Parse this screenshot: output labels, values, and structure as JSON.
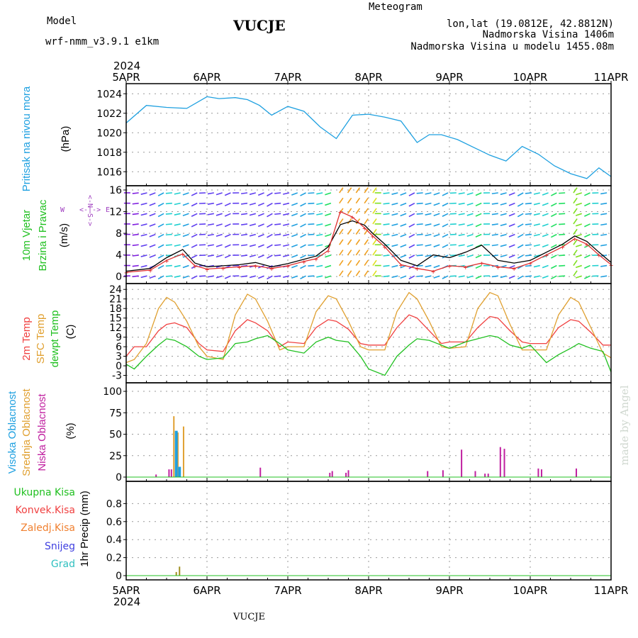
{
  "header": {
    "model_label": "Model",
    "model_value": "wrf-nmm_v3.9.1 e1km",
    "station": "VUCJE",
    "meteogram": "Meteogram",
    "lonlat": "lon,lat (19.0812E, 42.8812N)",
    "elevation": "Nadmorska Visina 1406m",
    "model_elevation": "Nadmorska Visina u modelu 1455.08m"
  },
  "footer": {
    "station": "VUCJE",
    "watermark": "made by Angel"
  },
  "colors": {
    "pressure": "#1ea0e0",
    "temp2m": "#f04040",
    "sfc": "#e0a030",
    "dewpt": "#20c020",
    "high_cloud": "#1ea0e0",
    "mid_cloud": "#e0a030",
    "low_cloud": "#c020a0",
    "wind_speed": "#000000",
    "gust": "#e03030",
    "model": "#a040c0",
    "meteogram": "#f0c080",
    "snow": "#4040e0",
    "grad": "#30c0c0",
    "kisa": "#a09020"
  },
  "chart_data": [
    {
      "type": "line",
      "panel": "pressure",
      "ylabel": [
        "Pritisak na nivou mora",
        "(hPa)"
      ],
      "ylim": [
        1015,
        1024.6
      ],
      "yticks": [
        1016,
        1018,
        1020,
        1022,
        1024
      ],
      "x": [
        0,
        0.25,
        0.5,
        0.75,
        1,
        1.15,
        1.35,
        1.5,
        1.65,
        1.8,
        2,
        2.2,
        2.4,
        2.6,
        2.8,
        3,
        3.2,
        3.4,
        3.6,
        3.75,
        3.9,
        4.1,
        4.3,
        4.5,
        4.7,
        4.9,
        5.1,
        5.3,
        5.5,
        5.7,
        5.85,
        6
      ],
      "series": [
        {
          "color": "pressure",
          "values": [
            1021.0,
            1022.8,
            1022.6,
            1022.5,
            1023.7,
            1023.5,
            1023.6,
            1023.4,
            1022.8,
            1021.8,
            1022.7,
            1022.2,
            1020.6,
            1019.4,
            1021.8,
            1021.9,
            1021.6,
            1021.2,
            1019.0,
            1019.8,
            1019.8,
            1019.3,
            1018.5,
            1017.7,
            1017.1,
            1018.6,
            1017.8,
            1016.6,
            1015.8,
            1015.3,
            1016.4,
            1015.5
          ]
        }
      ]
    },
    {
      "type": "line",
      "panel": "wind",
      "ylabel": [
        "10m Vjetar",
        "Brzina i Pravac",
        "(m/s)"
      ],
      "ylim": [
        -0.5,
        16
      ],
      "yticks": [
        0,
        4,
        8,
        12,
        16
      ],
      "x": [
        0,
        0.3,
        0.5,
        0.7,
        0.85,
        1,
        1.2,
        1.4,
        1.6,
        1.8,
        2,
        2.2,
        2.35,
        2.5,
        2.65,
        2.8,
        2.95,
        3.05,
        3.2,
        3.4,
        3.6,
        3.8,
        4,
        4.2,
        4.4,
        4.6,
        4.8,
        5,
        5.2,
        5.4,
        5.55,
        5.7,
        5.85,
        6
      ],
      "series": [
        {
          "color": "wind_speed",
          "values": [
            1.0,
            1.5,
            3.5,
            5.0,
            2.5,
            1.8,
            2.0,
            2.2,
            2.6,
            1.8,
            2.4,
            3.2,
            3.8,
            5.5,
            9.6,
            10.3,
            9.5,
            8.0,
            6.0,
            3.0,
            2.0,
            4.0,
            3.5,
            4.5,
            5.8,
            3.0,
            2.5,
            3.0,
            4.5,
            6.0,
            7.5,
            6.5,
            4.5,
            2.6
          ]
        },
        {
          "color": "gust",
          "values": [
            0.8,
            1.2,
            3.0,
            4.2,
            2.0,
            1.4,
            1.6,
            1.8,
            2.0,
            1.5,
            2.0,
            2.8,
            3.3,
            4.8,
            12.0,
            11.0,
            9.0,
            7.5,
            5.5,
            2.2,
            1.5,
            1.0,
            2.0,
            1.8,
            2.5,
            1.8,
            1.5,
            2.5,
            4.0,
            5.5,
            7.0,
            6.0,
            4.0,
            2.2
          ]
        }
      ],
      "barb_columns": 58
    },
    {
      "type": "line",
      "panel": "temperature",
      "ylabel": [
        "2m Temp",
        "SFC Temp",
        "dewpt Temp",
        "(C)"
      ],
      "ylim": [
        -4,
        24.5
      ],
      "yticks": [
        -3,
        0,
        3,
        6,
        9,
        12,
        15,
        18,
        21,
        24
      ],
      "x": [
        0,
        0.1,
        0.25,
        0.4,
        0.5,
        0.6,
        0.75,
        0.9,
        1,
        1.2,
        1.35,
        1.5,
        1.6,
        1.75,
        1.9,
        2,
        2.2,
        2.35,
        2.5,
        2.6,
        2.75,
        2.9,
        3,
        3.2,
        3.35,
        3.5,
        3.6,
        3.75,
        3.9,
        4,
        4.2,
        4.35,
        4.5,
        4.6,
        4.75,
        4.9,
        5,
        5.2,
        5.35,
        5.5,
        5.6,
        5.75,
        5.9,
        6
      ],
      "series": [
        {
          "name": "2m Temp",
          "color": "temp2m",
          "values": [
            3.0,
            6.0,
            6.0,
            11.0,
            13.0,
            13.5,
            12.0,
            7.0,
            5.0,
            4.5,
            11.0,
            14.5,
            13.5,
            11.0,
            6.0,
            7.5,
            7.0,
            12.0,
            14.5,
            14.0,
            11.5,
            7.0,
            6.5,
            6.5,
            12.0,
            16.0,
            15.0,
            11.0,
            7.0,
            7.5,
            7.5,
            12.0,
            15.5,
            15.0,
            11.0,
            7.5,
            7.0,
            7.0,
            12.0,
            14.5,
            14.0,
            10.5,
            6.5,
            6.5
          ]
        },
        {
          "name": "SFC Temp",
          "color": "sfc",
          "values": [
            1.0,
            2.0,
            7.0,
            18.0,
            21.5,
            20.0,
            14.0,
            6.0,
            3.0,
            2.0,
            16.0,
            22.5,
            21.0,
            14.0,
            5.0,
            6.0,
            6.0,
            17.0,
            22.0,
            21.0,
            14.0,
            6.0,
            5.0,
            5.0,
            17.0,
            23.0,
            21.0,
            14.0,
            6.0,
            5.5,
            6.0,
            18.0,
            23.0,
            22.0,
            13.0,
            5.0,
            5.0,
            5.0,
            16.0,
            21.5,
            20.0,
            12.0,
            4.0,
            2.5
          ]
        },
        {
          "name": "dewpt Temp",
          "color": "dewpt",
          "values": [
            0.5,
            -1.0,
            3.0,
            6.5,
            8.5,
            8.0,
            6.0,
            3.0,
            2.0,
            2.5,
            7.0,
            7.5,
            8.5,
            9.5,
            7.0,
            5.0,
            4.0,
            7.5,
            9.0,
            8.0,
            7.5,
            3.0,
            -1.0,
            -3.0,
            3.0,
            6.5,
            8.5,
            8.0,
            6.5,
            5.5,
            7.5,
            8.5,
            9.5,
            9.0,
            6.5,
            5.5,
            6.5,
            1.0,
            3.5,
            5.5,
            7.0,
            5.5,
            4.5,
            -2.0
          ]
        }
      ]
    },
    {
      "type": "bar",
      "panel": "clouds",
      "ylabel": [
        "Visoka Oblacnost",
        "Srednja Oblacnost",
        "Niska Oblacnost",
        "(%)"
      ],
      "ylim": [
        0,
        105
      ],
      "yticks": [
        0,
        25,
        50,
        75,
        100
      ],
      "series": [
        {
          "name": "Srednja Oblacnost",
          "color": "mid_cloud",
          "x": [
            0.59,
            0.64,
            0.71
          ],
          "values": [
            71,
            52,
            59
          ]
        },
        {
          "name": "Visoka Oblacnost",
          "color": "high_cloud",
          "x": [
            0.62,
            0.66
          ],
          "values": [
            54,
            12
          ]
        },
        {
          "name": "Niska Oblacnost",
          "color": "low_cloud",
          "x": [
            0.37,
            0.53,
            0.56,
            1.66,
            2.52,
            2.55,
            2.72,
            2.75,
            3.73,
            3.92,
            4.15,
            4.32,
            4.44,
            4.48,
            4.63,
            4.68,
            5.1,
            5.14,
            5.57
          ],
          "values": [
            3,
            9,
            9,
            11,
            5,
            7,
            5,
            8,
            7,
            8,
            32,
            7,
            4,
            4,
            35,
            33,
            10,
            9,
            10
          ]
        }
      ]
    },
    {
      "type": "bar",
      "panel": "precipitation",
      "ylabel": [
        "1hr Precip (mm)"
      ],
      "ylim": [
        0,
        1.0
      ],
      "yticks": [
        0,
        0.2,
        0.4,
        0.6,
        0.8
      ],
      "series": [
        {
          "name": "Ukupna Kisa",
          "color": "kisa",
          "x": [
            0.62,
            0.66
          ],
          "values": [
            0.04,
            0.1
          ]
        }
      ],
      "legend": [
        {
          "label": "Ukupna Kisa",
          "color": "#20c020"
        },
        {
          "label": "Konvek.Kisa",
          "color": "#f04040"
        },
        {
          "label": "Zaledj.Kisa",
          "color": "#f08030"
        },
        {
          "label": "Snijeg",
          "color": "#4040e0"
        },
        {
          "label": "Grad",
          "color": "#30c0c0"
        }
      ]
    }
  ],
  "x_axis": {
    "year": "2024",
    "ticks": [
      {
        "at": 0,
        "label": "5APR"
      },
      {
        "at": 1,
        "label": "6APR"
      },
      {
        "at": 2,
        "label": "7APR"
      },
      {
        "at": 3,
        "label": "8APR"
      },
      {
        "at": 4,
        "label": "9APR"
      },
      {
        "at": 5,
        "label": "10APR"
      },
      {
        "at": 6,
        "label": "11APR"
      }
    ]
  }
}
